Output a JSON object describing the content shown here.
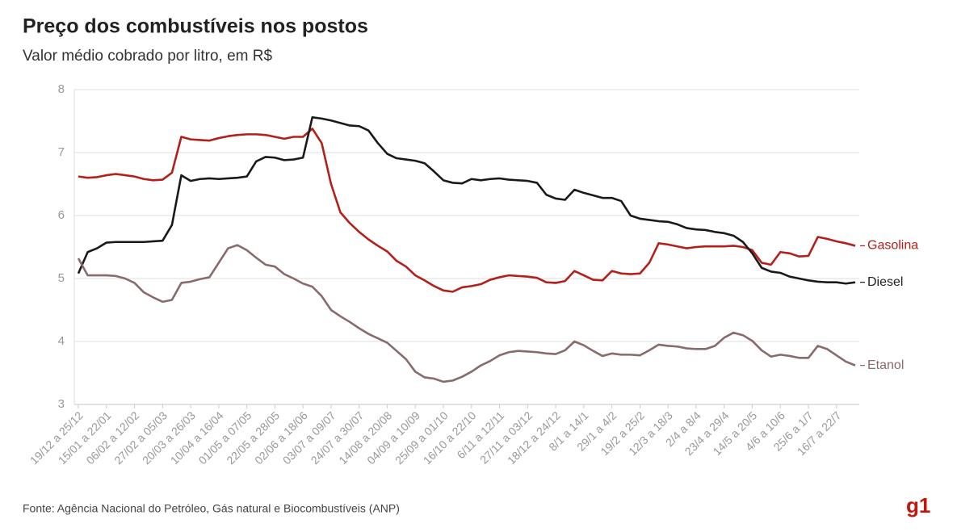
{
  "chart_data": {
    "type": "line",
    "title": "Preço dos combustíveis nos postos",
    "subtitle": "Valor médio cobrado por litro, em R$",
    "source": "Fonte: Agência Nacional do Petróleo, Gás natural e Biocombustíveis (ANP)",
    "brand": "g1",
    "categories": [
      "19/12 a 25/12",
      null,
      null,
      "15/01 a 22/01",
      null,
      null,
      "06/02 a 12/02",
      null,
      null,
      "27/02 a 05/03",
      null,
      null,
      "20/03 a 26/03",
      null,
      null,
      "10/04 a 16/04",
      null,
      null,
      "01/05 a 07/05",
      null,
      null,
      "22/05 a 28/05",
      null,
      null,
      "02/06 a 18/06",
      null,
      null,
      "03/07 a 09/07",
      null,
      null,
      "24/07 a 30/07",
      null,
      null,
      "14/08 a 20/08",
      null,
      null,
      "04/09 a 10/09",
      null,
      null,
      "25/09 a 01/10",
      null,
      null,
      "16/10 a 22/10",
      null,
      null,
      "6/11 a 12/11",
      null,
      null,
      "27/11 a 03/12",
      null,
      null,
      "18/12 a 24/12",
      null,
      null,
      "8/1 a 14/1",
      null,
      null,
      "29/1 a 4/2",
      null,
      null,
      "19/2 a 25/2",
      null,
      null,
      "12/3 a 18/3",
      null,
      null,
      "2/4 a 8/4",
      null,
      null,
      "23/4 a 29/4",
      null,
      null,
      "14/5 a 20/5",
      null,
      null,
      "4/6 a 10/6",
      null,
      null,
      "25/6 a 1/7",
      null,
      null,
      "16/7 a 22/7",
      null,
      null
    ],
    "series": [
      {
        "name": "Gasolina",
        "color": "#b3201b",
        "values": [
          6.62,
          6.6,
          6.61,
          6.64,
          6.66,
          6.64,
          6.62,
          6.58,
          6.56,
          6.57,
          6.68,
          7.25,
          7.21,
          7.2,
          7.19,
          7.23,
          7.26,
          7.28,
          7.29,
          7.29,
          7.28,
          7.25,
          7.22,
          7.25,
          7.25,
          7.38,
          7.15,
          6.5,
          6.05,
          5.88,
          5.74,
          5.62,
          5.52,
          5.43,
          5.28,
          5.19,
          5.05,
          4.97,
          4.88,
          4.81,
          4.79,
          4.86,
          4.88,
          4.91,
          4.98,
          5.02,
          5.05,
          5.04,
          5.03,
          5.01,
          4.94,
          4.93,
          4.96,
          5.12,
          5.05,
          4.98,
          4.97,
          5.12,
          5.08,
          5.07,
          5.08,
          5.25,
          5.56,
          5.54,
          5.51,
          5.48,
          5.5,
          5.51,
          5.51,
          5.51,
          5.52,
          5.5,
          5.45,
          5.25,
          5.22,
          5.42,
          5.4,
          5.35,
          5.36,
          5.66,
          5.63,
          5.59,
          5.56,
          5.52
        ]
      },
      {
        "name": "Diesel",
        "color": "#1a1a1a",
        "values": [
          5.08,
          5.42,
          5.48,
          5.57,
          5.58,
          5.58,
          5.58,
          5.58,
          5.59,
          5.6,
          5.85,
          6.64,
          6.55,
          6.58,
          6.59,
          6.58,
          6.59,
          6.6,
          6.62,
          6.86,
          6.93,
          6.92,
          6.88,
          6.89,
          6.92,
          7.56,
          7.54,
          7.51,
          7.47,
          7.43,
          7.42,
          7.35,
          7.15,
          6.98,
          6.91,
          6.89,
          6.87,
          6.83,
          6.7,
          6.56,
          6.52,
          6.51,
          6.58,
          6.56,
          6.58,
          6.59,
          6.57,
          6.56,
          6.55,
          6.52,
          6.33,
          6.27,
          6.25,
          6.41,
          6.36,
          6.32,
          6.28,
          6.28,
          6.23,
          6.0,
          5.95,
          5.93,
          5.91,
          5.9,
          5.86,
          5.8,
          5.78,
          5.77,
          5.74,
          5.72,
          5.68,
          5.58,
          5.4,
          5.17,
          5.11,
          5.09,
          5.03,
          5.0,
          4.97,
          4.95,
          4.94,
          4.94,
          4.92,
          4.94
        ]
      },
      {
        "name": "Etanol",
        "color": "#8a6a6a",
        "values": [
          5.32,
          5.05,
          5.05,
          5.05,
          5.04,
          5.0,
          4.93,
          4.78,
          4.7,
          4.63,
          4.66,
          4.93,
          4.95,
          4.99,
          5.02,
          5.25,
          5.48,
          5.53,
          5.45,
          5.33,
          5.22,
          5.19,
          5.07,
          5.0,
          4.92,
          4.87,
          4.72,
          4.5,
          4.4,
          4.31,
          4.21,
          4.12,
          4.05,
          3.98,
          3.85,
          3.72,
          3.52,
          3.43,
          3.41,
          3.36,
          3.38,
          3.44,
          3.52,
          3.62,
          3.69,
          3.78,
          3.83,
          3.85,
          3.84,
          3.83,
          3.81,
          3.8,
          3.86,
          4.0,
          3.94,
          3.85,
          3.77,
          3.81,
          3.79,
          3.79,
          3.78,
          3.86,
          3.95,
          3.93,
          3.92,
          3.89,
          3.88,
          3.88,
          3.93,
          4.06,
          4.14,
          4.1,
          4.01,
          3.86,
          3.76,
          3.79,
          3.77,
          3.74,
          3.74,
          3.93,
          3.88,
          3.78,
          3.68,
          3.62
        ]
      }
    ],
    "ylim": [
      3,
      8
    ],
    "yticks": [
      3,
      4,
      5,
      6,
      7,
      8
    ],
    "grid": true
  }
}
